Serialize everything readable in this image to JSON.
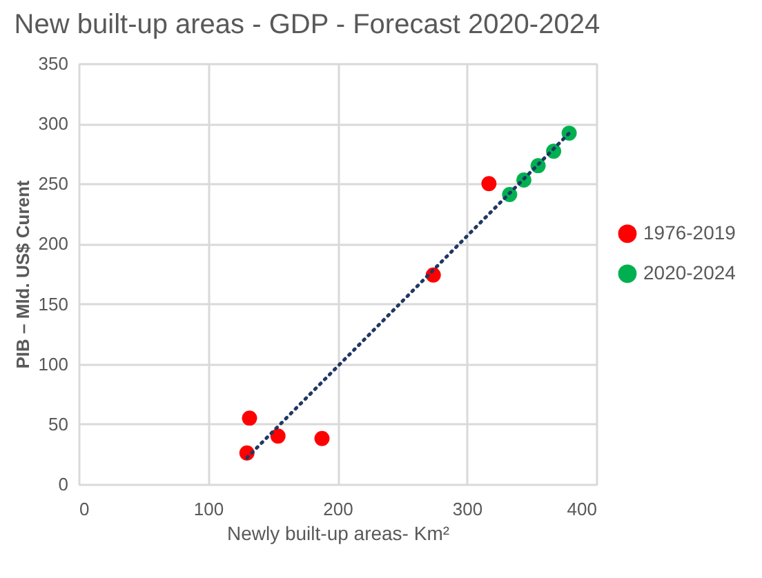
{
  "chart_data": {
    "type": "scatter",
    "title": "New built-up areas - GDP - Forecast 2020-2024",
    "xlabel": "Newly built-up areas- Km²",
    "ylabel": "PIB – Mld. US$ Curent",
    "xlim": [
      0,
      400
    ],
    "xticks": [
      0,
      100,
      200,
      300,
      400
    ],
    "ylim": [
      0,
      350
    ],
    "yticks": [
      0,
      50,
      100,
      150,
      200,
      250,
      300,
      350
    ],
    "grid": true,
    "legend": "right",
    "marker": "circle",
    "series": [
      {
        "name": "1976-2019",
        "color": "#ff0000",
        "x": [
          130,
          132,
          154,
          188,
          274,
          317
        ],
        "values": [
          26,
          55,
          40,
          38,
          174,
          250
        ]
      },
      {
        "name": "2020-2024",
        "color": "#00b050",
        "x": [
          333,
          344,
          355,
          367,
          379
        ],
        "values": [
          241,
          253,
          265,
          277,
          292
        ]
      },
      {
        "type": "line",
        "marker": "none",
        "color": "#1f3864",
        "line_style": "dotted",
        "x": [
          130,
          379
        ],
        "values": [
          22,
          292
        ]
      }
    ]
  }
}
